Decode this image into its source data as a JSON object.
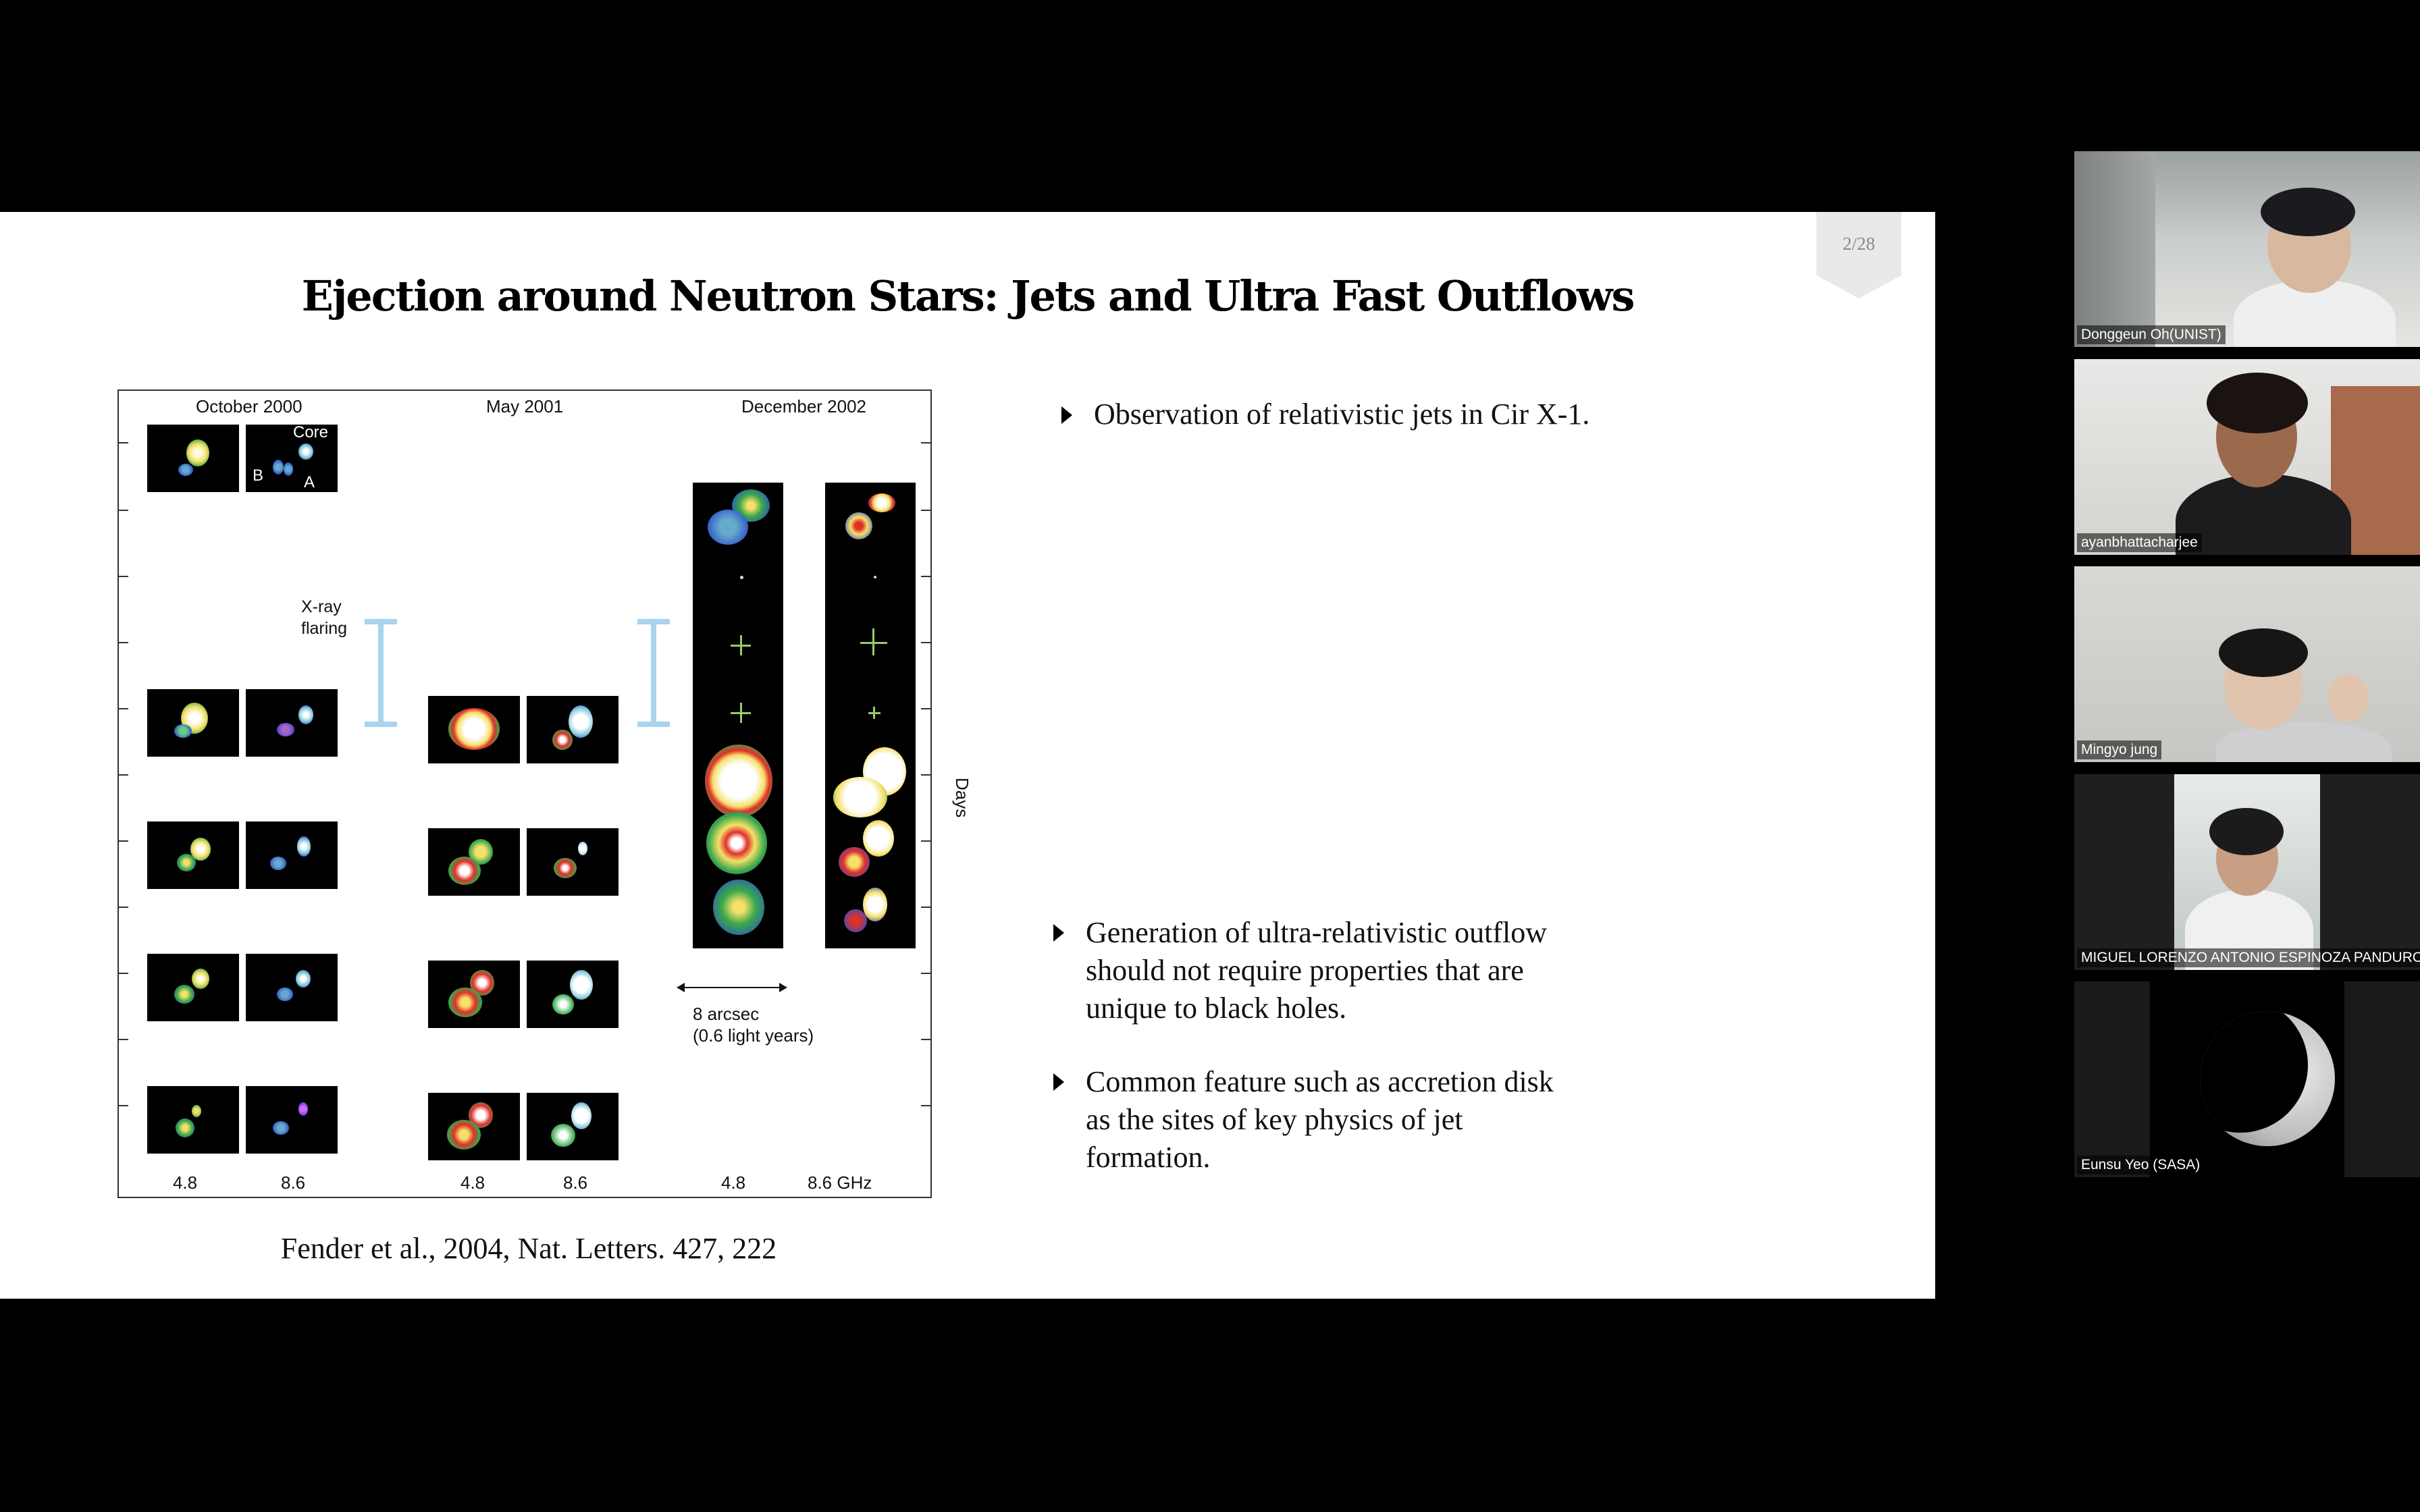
{
  "slide": {
    "page_number": "2/28",
    "title": "Ejection around Neutron Stars: Jets and Ultra Fast Outflows",
    "figure": {
      "column_headers": [
        "October 2000",
        "May 2001",
        "December 2002"
      ],
      "core_labels": {
        "core": "Core",
        "b": "B",
        "a": "A"
      },
      "xray_label_line1": "X-ray",
      "xray_label_line2": "flaring",
      "scale_label_line1": "8 arcsec",
      "scale_label_line2": "(0.6 light years)",
      "days_label": "Days",
      "freq_labels": [
        "4.8",
        "8.6",
        "4.8",
        "8.6",
        "4.8",
        "8.6 GHz"
      ]
    },
    "citation": "Fender et al., 2004, Nat. Letters. 427, 222",
    "bullets": [
      {
        "lines": [
          "Observation of relativistic jets in Cir X-1."
        ]
      },
      {
        "lines": [
          "Generation of ultra-relativistic outflow",
          "should not require properties that are",
          "unique to black holes."
        ]
      },
      {
        "lines": [
          "Common feature such as accretion disk",
          "as the sites of key physics of jet",
          "formation."
        ]
      }
    ]
  },
  "participants": [
    {
      "name": "Donggeun Oh(UNIST)"
    },
    {
      "name": "ayanbhattacharjee"
    },
    {
      "name": "Mingyo jung"
    },
    {
      "name": "MIGUEL LORENZO ANTONIO ESPINOZA PANDURO"
    },
    {
      "name": "Eunsu Yeo (SASA)"
    }
  ]
}
